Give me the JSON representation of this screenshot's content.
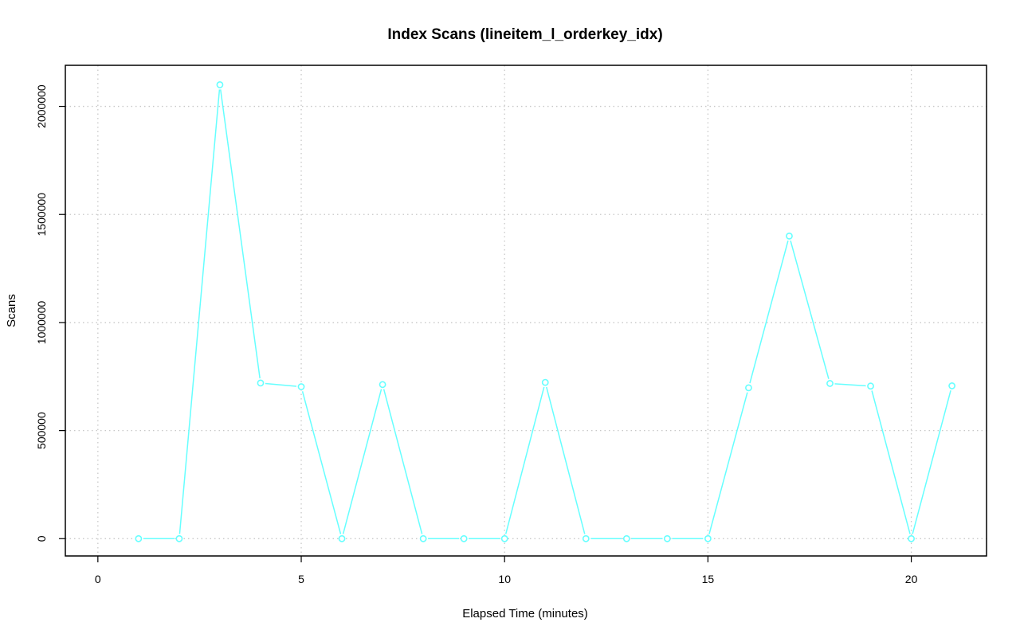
{
  "chart_data": {
    "type": "line",
    "title": "Index Scans (lineitem_l_orderkey_idx)",
    "xlabel": "Elapsed Time (minutes)",
    "ylabel": "Scans",
    "xlim": [
      -0.8,
      21.85
    ],
    "ylim": [
      -80000,
      2190000
    ],
    "x_ticks": [
      0,
      5,
      10,
      15,
      20
    ],
    "x_tick_labels": [
      "0",
      "5",
      "10",
      "15",
      "20"
    ],
    "y_ticks": [
      0,
      500000,
      1000000,
      1500000,
      2000000
    ],
    "y_tick_labels": [
      "0",
      "500000",
      "1000000",
      "1500000",
      "2000000"
    ],
    "grid": true,
    "legend": "none",
    "series": [
      {
        "color": "#66ffff",
        "marker": "open-circle",
        "x": [
          1,
          2,
          3,
          4,
          5,
          6,
          7,
          8,
          9,
          10,
          11,
          12,
          13,
          14,
          15,
          16,
          17,
          18,
          19,
          20,
          21
        ],
        "values": [
          0,
          0,
          2100000,
          720000,
          703000,
          0,
          713000,
          0,
          0,
          0,
          723000,
          0,
          0,
          0,
          0,
          698000,
          1400000,
          718000,
          706000,
          0,
          707000
        ]
      }
    ]
  }
}
